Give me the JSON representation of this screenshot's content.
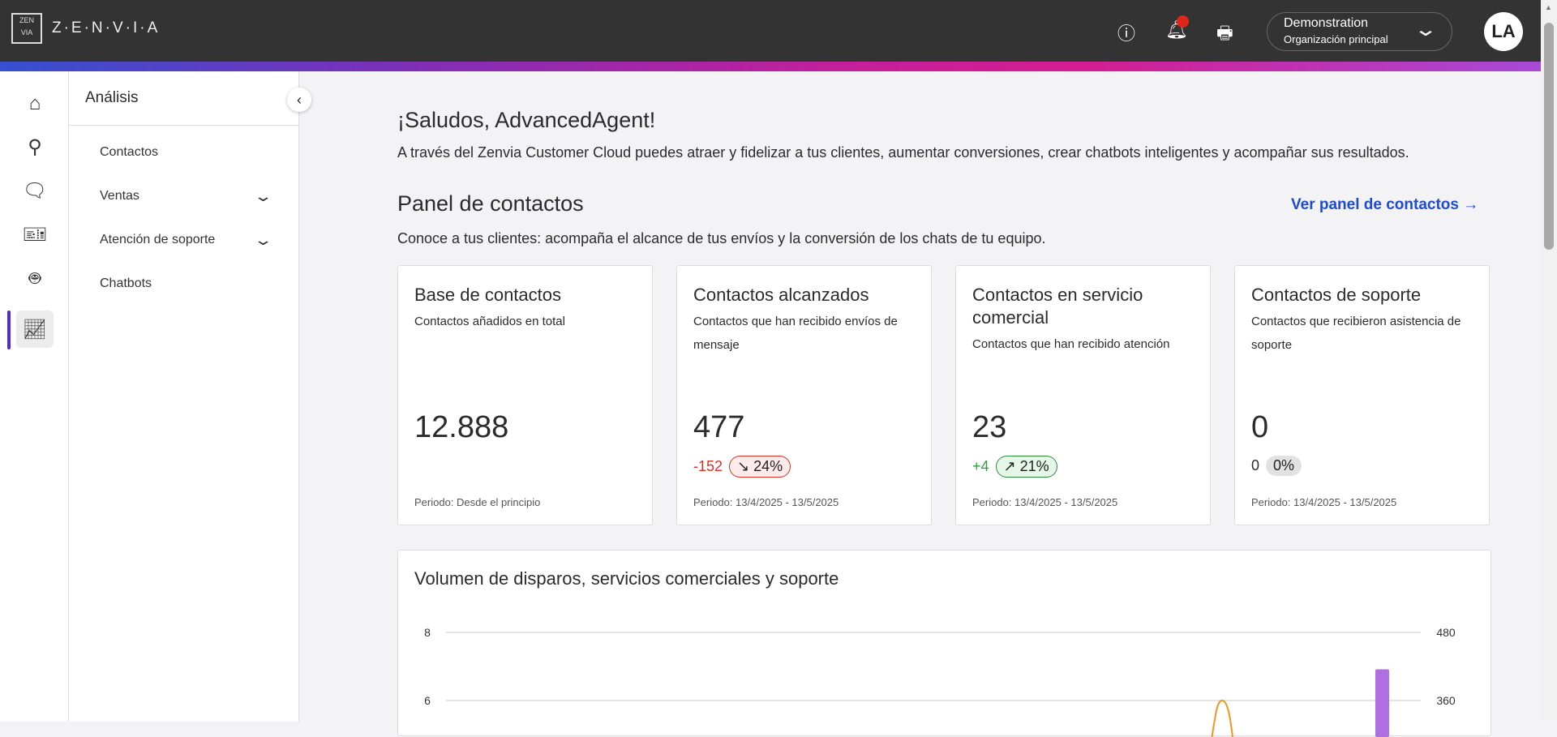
{
  "header": {
    "brand": "Z·E·N·V·I·A",
    "logo_mark": "ZEN VIA",
    "icons": [
      "help-icon",
      "bell-icon",
      "inbox-icon"
    ],
    "org_name": "Demonstration",
    "org_sub": "Organización principal",
    "avatar": "LA",
    "notification_color": "#e0261a"
  },
  "rail": {
    "items": [
      "home-icon",
      "person-icon",
      "chat-icon",
      "ticket-icon",
      "bot-icon",
      "analytics-icon"
    ],
    "active": "analytics-icon",
    "accent": "#4b2be0"
  },
  "subnav": {
    "title": "Análisis",
    "items": [
      {
        "label": "Contactos",
        "expandable": false
      },
      {
        "label": "Ventas",
        "expandable": true
      },
      {
        "label": "Atención de soporte",
        "expandable": true
      },
      {
        "label": "Chatbots",
        "expandable": false
      }
    ]
  },
  "main": {
    "greeting": "¡Saludos, AdvancedAgent!",
    "intro": "A través del Zenvia Customer Cloud puedes atraer y fidelizar a tus clientes, aumentar conversiones, crear chatbots inteligentes y acompañar sus resultados.",
    "panel_title": "Panel de contactos",
    "panel_link": "Ver panel de contactos →",
    "panel_desc": "Conoce a tus clientes: acompaña el alcance de tus envíos y la conversión de los chats de tu equipo.",
    "cards": [
      {
        "title": "Base de contactos",
        "desc": "Contactos añadidos en total",
        "value": "12.888",
        "period": "Periodo: Desde el principio"
      },
      {
        "title": "Contactos alcanzados",
        "desc": "Contactos que han recibido envíos de mensaje",
        "value": "477",
        "delta": "-152",
        "pct": "↘ 24%",
        "trend": "down",
        "period": "Periodo: 13/4/2025 - 13/5/2025"
      },
      {
        "title": "Contactos en servicio comercial",
        "desc": "Contactos que han recibido atención",
        "value": "23",
        "delta": "+4",
        "pct": "↗ 21%",
        "trend": "up",
        "period": "Periodo: 13/4/2025 - 13/5/2025"
      },
      {
        "title": "Contactos de soporte",
        "desc": "Contactos que recibieron asistencia de soporte",
        "value": "0",
        "delta": "0",
        "pct": "0%",
        "trend": "flat",
        "period": "Periodo: 13/4/2025 - 13/5/2025"
      }
    ]
  },
  "chart_data": {
    "type": "bar+line",
    "title": "Volumen de disparos, servicios comerciales y soporte",
    "y_left_ticks": [
      "8",
      "6"
    ],
    "y_right_ticks": [
      "480",
      "360"
    ],
    "grid": true,
    "series": [
      {
        "type": "bar",
        "axis": "right",
        "color": "#b06fe0",
        "visible_value": 415
      },
      {
        "type": "line",
        "axis": "left",
        "color": "#f0961e",
        "visible_peak": 6
      }
    ]
  }
}
